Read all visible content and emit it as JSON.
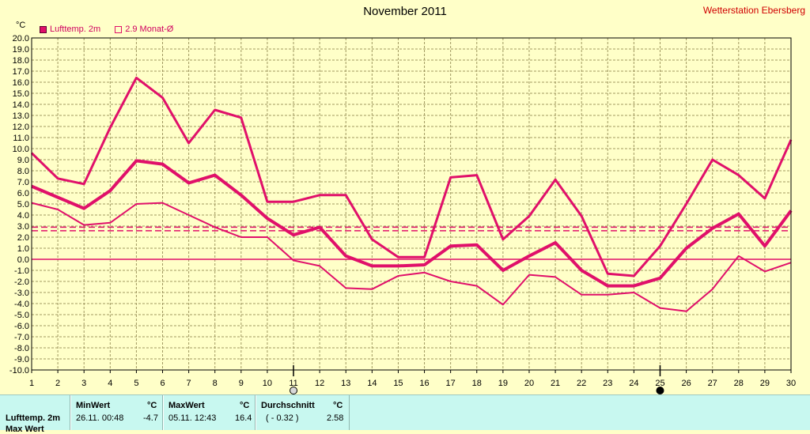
{
  "header": {
    "title": "November 2011",
    "station": "Wetterstation Ebersberg",
    "unit": "°C"
  },
  "legend": [
    {
      "label": "Lufttemp. 2m",
      "style": "filled",
      "color": "#e0106a"
    },
    {
      "label": "2.9 Monat-Ø",
      "style": "hollow",
      "color": "#e0106a"
    }
  ],
  "chart_data": {
    "type": "line",
    "title": "November 2011",
    "ylabel": "°C",
    "ylim": [
      -10,
      20
    ],
    "xlim": [
      1,
      30
    ],
    "grid": true,
    "x": [
      1,
      2,
      3,
      4,
      5,
      6,
      7,
      8,
      9,
      10,
      11,
      12,
      13,
      14,
      15,
      16,
      17,
      18,
      19,
      20,
      21,
      22,
      23,
      24,
      25,
      26,
      27,
      28,
      29,
      30
    ],
    "yticks": [
      "20.0",
      "19.0",
      "18.0",
      "17.0",
      "16.0",
      "15.0",
      "14.0",
      "13.0",
      "12.0",
      "11.0",
      "10.0",
      "9.0",
      "8.0",
      "7.0",
      "6.0",
      "5.0",
      "4.0",
      "3.0",
      "2.0",
      "1.0",
      "0.0",
      "-1.0",
      "-2.0",
      "-3.0",
      "-4.0",
      "-5.0",
      "-6.0",
      "-7.0",
      "-8.0",
      "-9.0",
      "-10.0"
    ],
    "xticks": [
      "1",
      "2",
      "3",
      "4",
      "5",
      "6",
      "7",
      "8",
      "9",
      "10",
      "11",
      "12",
      "13",
      "14",
      "15",
      "16",
      "17",
      "18",
      "19",
      "20",
      "21",
      "22",
      "23",
      "24",
      "25",
      "26",
      "27",
      "28",
      "29",
      "30"
    ],
    "series": [
      {
        "role": "max",
        "width": 3,
        "values": [
          9.6,
          7.3,
          6.8,
          11.9,
          16.4,
          14.6,
          10.5,
          13.5,
          12.8,
          5.2,
          5.2,
          5.8,
          5.8,
          1.8,
          0.2,
          0.2,
          7.4,
          7.6,
          1.8,
          3.9,
          7.2,
          3.9,
          -1.3,
          -1.5,
          1.2,
          5.0,
          9.0,
          7.6,
          5.5,
          10.8
        ]
      },
      {
        "role": "mean",
        "width": 4,
        "values": [
          6.6,
          5.6,
          4.6,
          6.2,
          8.9,
          8.6,
          6.9,
          7.6,
          5.8,
          3.7,
          2.2,
          2.9,
          0.3,
          -0.6,
          -0.6,
          -0.5,
          1.2,
          1.3,
          -1.0,
          0.3,
          1.5,
          -1.0,
          -2.4,
          -2.4,
          -1.7,
          1.0,
          2.8,
          4.1,
          1.2,
          4.4
        ]
      },
      {
        "role": "min",
        "width": 2,
        "values": [
          5.1,
          4.5,
          3.1,
          3.3,
          5.0,
          5.1,
          4.0,
          2.9,
          2.0,
          2.0,
          -0.1,
          -0.6,
          -2.6,
          -2.7,
          -1.5,
          -1.2,
          -2.0,
          -2.4,
          -4.1,
          -1.4,
          -1.6,
          -3.2,
          -3.2,
          -3.0,
          -4.4,
          -4.7,
          -2.7,
          0.3,
          -1.1,
          -0.3
        ]
      }
    ],
    "reference_lines": [
      {
        "name": "2.9 Monat-Ø",
        "value": 2.9,
        "style": "dashed"
      },
      {
        "value": 2.58,
        "style": "dashed"
      },
      {
        "value": 0,
        "style": "solid"
      }
    ],
    "markers": [
      {
        "x": 11,
        "icon": "moon-first-quarter-icon"
      },
      {
        "x": 25,
        "icon": "new-moon-icon"
      }
    ],
    "colors": {
      "line": "#e0106a",
      "grid": "#a09860",
      "background": "#ffffc8",
      "axis": "#000000"
    }
  },
  "stats": {
    "row_label": "Lufttemp. 2m",
    "row_label_2": "Max Wert",
    "min": {
      "header": "MinWert",
      "unit": "°C",
      "date": "26.11.  00:48",
      "value": "-4.7"
    },
    "max": {
      "header": "MaxWert",
      "unit": "°C",
      "date": "05.11.  12:43",
      "value": "16.4"
    },
    "avg": {
      "header": "Durchschnitt",
      "unit": "°C",
      "note": "( - 0.32 )",
      "value": "2.58"
    }
  }
}
